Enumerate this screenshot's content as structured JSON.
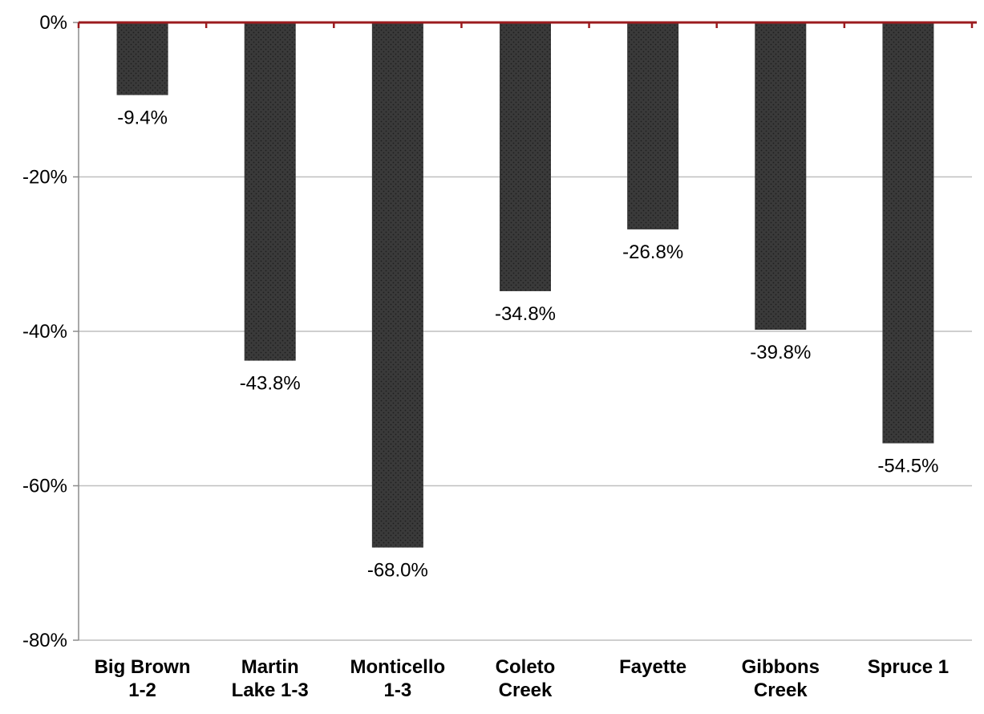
{
  "chart_data": {
    "type": "bar",
    "categories": [
      [
        "Big Brown",
        "1-2"
      ],
      [
        "Martin",
        "Lake 1-3"
      ],
      [
        "Monticello",
        "1-3"
      ],
      [
        "Coleto",
        "Creek"
      ],
      [
        "Fayette"
      ],
      [
        "Gibbons",
        "Creek"
      ],
      [
        "Spruce 1"
      ]
    ],
    "values": [
      -9.4,
      -43.8,
      -68.0,
      -34.8,
      -26.8,
      -39.8,
      -54.5
    ],
    "data_labels": [
      "-9.4%",
      "-43.8%",
      "-68.0%",
      "-34.8%",
      "-26.8%",
      "-39.8%",
      "-54.5%"
    ],
    "y_ticks": [
      0,
      -20,
      -40,
      -60,
      -80
    ],
    "y_tick_labels": [
      "0%",
      "-20%",
      "-40%",
      "-60%",
      "-80%"
    ],
    "ylim": [
      -80,
      0
    ],
    "grid": true,
    "legend": "none",
    "title": "",
    "xlabel": "",
    "ylabel": "",
    "colors": {
      "bar_fill": "#3a3a3a",
      "bar_dots": "#1f1f1f",
      "zero_line": "#9b1b1e",
      "grid": "#bfbfbf",
      "axis": "#8c8c8c"
    }
  }
}
